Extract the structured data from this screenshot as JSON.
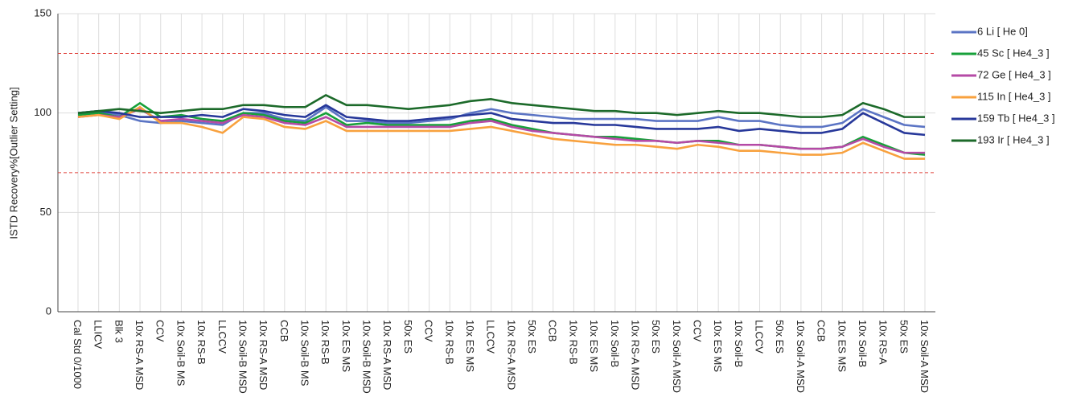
{
  "chart_data": {
    "type": "line",
    "y_label": "ISTD Recovery%[Outlier Setting]",
    "categories": [
      "Cal Std 0/1000",
      "LLICV",
      "Blk 3",
      "10x RS-A MSD",
      "CCV",
      "10x Soil-B MS",
      "10x RS-B",
      "LLCCV",
      "10x Soil-B MSD",
      "10x RS-A MSD",
      "CCB",
      "10x Soil-B MS",
      "10x RS-B",
      "10x ES MS",
      "10x Soil-B MSD",
      "10x RS-A MSD",
      "50x ES",
      "CCV",
      "10x RS-B",
      "10x ES MS",
      "LLCCV",
      "10x RS-A MSD",
      "50x ES",
      "CCB",
      "10x RS-B",
      "10x ES MS",
      "10x Soil-B",
      "10x RS-A MSD",
      "50x ES",
      "10x Soil-A MSD",
      "CCV",
      "10x ES MS",
      "10x Soil-B",
      "LLCCV",
      "50x ES",
      "10x Soil-A MSD",
      "CCB",
      "10x ES MS",
      "10x Soil-B",
      "10x RS-A",
      "50x ES",
      "10x Soil-A MSD"
    ],
    "series": [
      {
        "name": "6 Li [ He 0]",
        "color": "#5b74c4",
        "values": [
          100,
          101,
          99,
          96,
          95,
          96,
          95,
          94,
          100,
          100,
          97,
          96,
          103,
          96,
          96,
          95,
          95,
          96,
          97,
          100,
          102,
          100,
          99,
          98,
          97,
          97,
          97,
          97,
          96,
          96,
          96,
          98,
          96,
          96,
          94,
          93,
          93,
          95,
          102,
          98,
          94,
          93
        ]
      },
      {
        "name": "45 Sc [ He4_3 ]",
        "color": "#17a03a",
        "values": [
          99,
          100,
          98,
          105,
          98,
          99,
          97,
          96,
          100,
          99,
          96,
          95,
          100,
          94,
          95,
          94,
          94,
          94,
          94,
          96,
          97,
          94,
          92,
          90,
          89,
          88,
          88,
          87,
          86,
          85,
          86,
          86,
          84,
          84,
          83,
          82,
          82,
          83,
          88,
          84,
          80,
          79
        ]
      },
      {
        "name": "72 Ge [ He4_3 ]",
        "color": "#b54aa6",
        "values": [
          98,
          99,
          98,
          102,
          96,
          97,
          96,
          95,
          99,
          98,
          95,
          94,
          98,
          93,
          93,
          93,
          93,
          93,
          93,
          95,
          96,
          93,
          91,
          90,
          89,
          88,
          87,
          86,
          86,
          85,
          86,
          85,
          84,
          84,
          83,
          82,
          82,
          83,
          87,
          83,
          80,
          80
        ]
      },
      {
        "name": "115 In [ He4_3 ]",
        "color": "#f8a13e",
        "values": [
          98,
          99,
          97,
          103,
          95,
          95,
          93,
          90,
          98,
          97,
          93,
          92,
          96,
          91,
          91,
          91,
          91,
          91,
          91,
          92,
          93,
          91,
          89,
          87,
          86,
          85,
          84,
          84,
          83,
          82,
          84,
          83,
          81,
          81,
          80,
          79,
          79,
          80,
          85,
          81,
          77,
          77
        ]
      },
      {
        "name": "159 Tb [ He4_3 ]",
        "color": "#27389a",
        "values": [
          100,
          101,
          100,
          98,
          98,
          98,
          99,
          98,
          102,
          101,
          99,
          98,
          104,
          98,
          97,
          96,
          96,
          97,
          98,
          99,
          100,
          97,
          96,
          95,
          95,
          94,
          94,
          93,
          92,
          92,
          92,
          93,
          91,
          92,
          91,
          90,
          90,
          92,
          100,
          95,
          90,
          89
        ]
      },
      {
        "name": "193 Ir [ He4_3 ]",
        "color": "#1c6a2a",
        "values": [
          100,
          101,
          102,
          101,
          100,
          101,
          102,
          102,
          104,
          104,
          103,
          103,
          109,
          104,
          104,
          103,
          102,
          103,
          104,
          106,
          107,
          105,
          104,
          103,
          102,
          101,
          101,
          100,
          100,
          99,
          100,
          101,
          100,
          100,
          99,
          98,
          98,
          99,
          105,
          102,
          98,
          98
        ]
      }
    ],
    "ylim": [
      0,
      150
    ],
    "yticks": [
      0,
      50,
      100,
      150
    ],
    "reference_lines": [
      70,
      130
    ],
    "reference_color": "#e0403a",
    "grid": true,
    "legend": "right"
  }
}
